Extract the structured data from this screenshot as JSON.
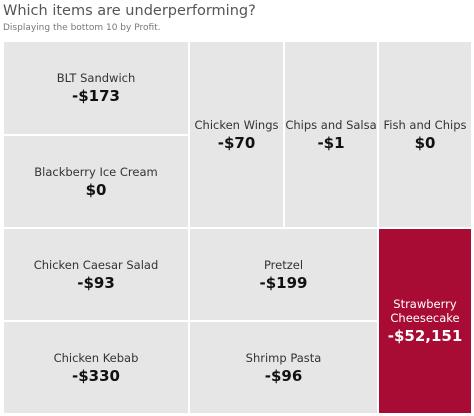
{
  "header": {
    "title": "Which items are underperforming?",
    "subtitle": "Displaying the bottom 10 by Profit."
  },
  "colors": {
    "default": "#e6e6e6",
    "highlight": "#a80c35",
    "border": "#ffffff"
  },
  "chart_data": {
    "type": "treemap",
    "items": [
      {
        "name": "BLT Sandwich",
        "label": "-$173",
        "value": -173
      },
      {
        "name": "Blackberry Ice Cream",
        "label": "$0",
        "value": 0
      },
      {
        "name": "Chicken Wings",
        "label": "-$70",
        "value": -70
      },
      {
        "name": "Chips and Salsa",
        "label": "-$1",
        "value": -1
      },
      {
        "name": "Fish and Chips",
        "label": "$0",
        "value": 0
      },
      {
        "name": "Chicken Caesar Salad",
        "label": "-$93",
        "value": -93
      },
      {
        "name": "Pretzel",
        "label": "-$199",
        "value": -199
      },
      {
        "name": "Strawberry\nCheesecake",
        "label": "-$52,151",
        "value": -52151,
        "highlight": true
      },
      {
        "name": "Chicken Kebab",
        "label": "-$330",
        "value": -330
      },
      {
        "name": "Shrimp Pasta",
        "label": "-$96",
        "value": -96
      }
    ]
  }
}
